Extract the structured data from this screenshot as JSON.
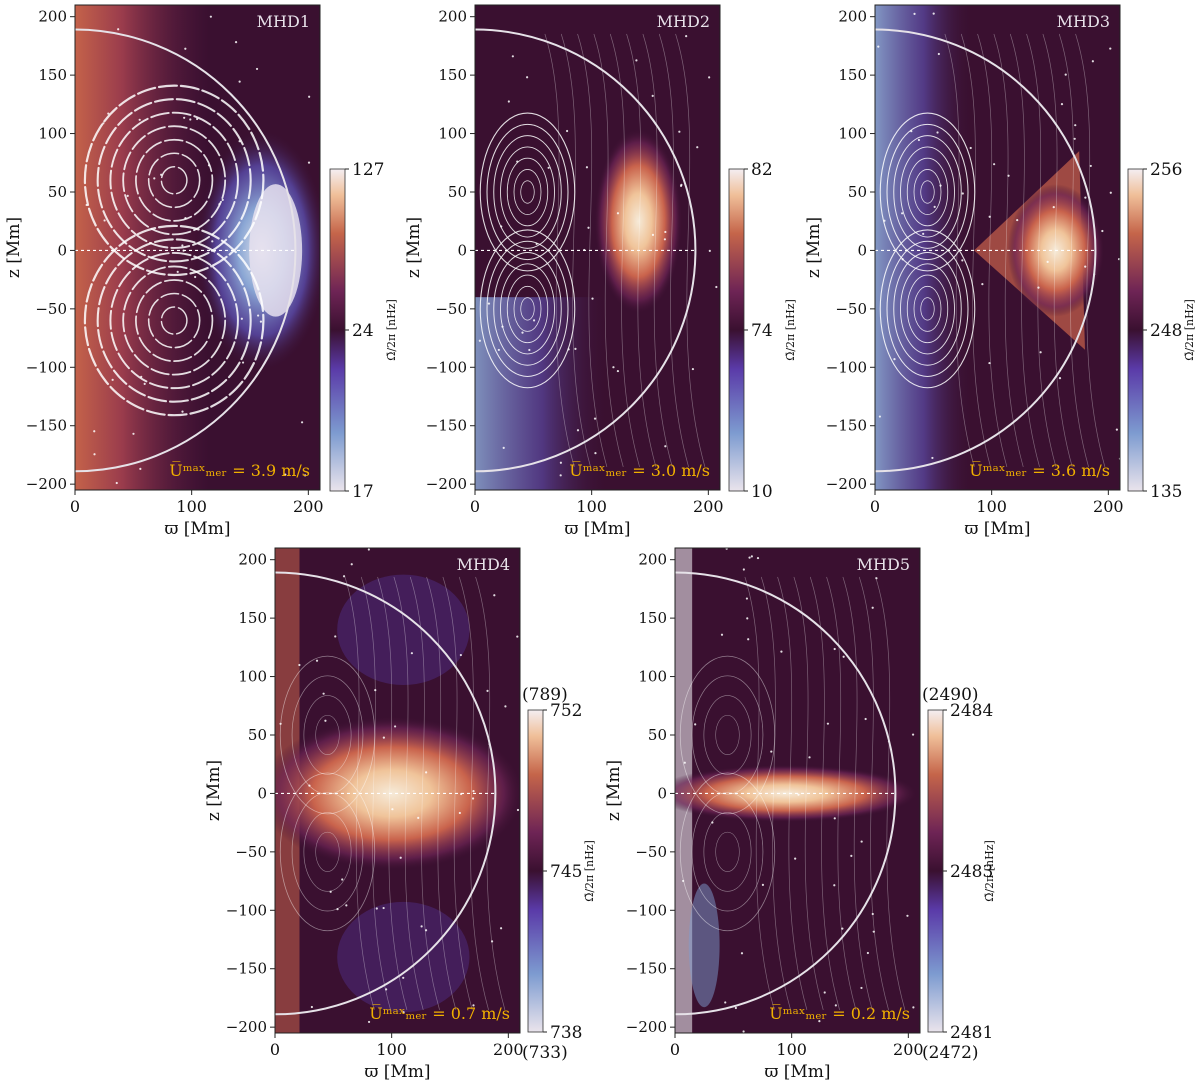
{
  "colors": {
    "background_dark": "#3a1030",
    "mid_purple": "#5a2a70",
    "purple": "#6b3aa0",
    "blue": "#5e7fc0",
    "light": "#e8e2ea",
    "orange": "#d88a50",
    "peach": "#f0c6a0",
    "annotation": "#f0b000",
    "streamline": "#ffffff"
  },
  "colormap": "twilight_shifted",
  "axis_labels": {
    "x": "ϖ [Mm]",
    "y": "z [Mm]",
    "cbar": "Ω̄/2π [nHz]"
  },
  "chart_data": [
    {
      "type": "heatmap",
      "title": "MHD1",
      "xlim": [
        0,
        210
      ],
      "ylim": [
        -205,
        210
      ],
      "x_ticks": [
        "0",
        "100",
        "200"
      ],
      "y_ticks": [
        "200",
        "150",
        "100",
        "50",
        "0",
        "−50",
        "−100",
        "−150",
        "−200"
      ],
      "colorbar": {
        "min": "17",
        "mid": "24",
        "max": "127",
        "min_outer": "",
        "max_outer": ""
      },
      "annotation": "U̅ᵐᵃˣₘₑᵣ = 3.9 m/s",
      "u_max": 3.9,
      "radius": 189,
      "streamline_strength": "strong",
      "hotspot": {
        "x": 170,
        "z": 0,
        "shape": "crescent"
      }
    },
    {
      "type": "heatmap",
      "title": "MHD2",
      "xlim": [
        0,
        210
      ],
      "ylim": [
        -205,
        210
      ],
      "x_ticks": [
        "0",
        "100",
        "200"
      ],
      "y_ticks": [
        "200",
        "150",
        "100",
        "50",
        "0",
        "−50",
        "−100",
        "−150",
        "−200"
      ],
      "colorbar": {
        "min": "10",
        "mid": "74",
        "max": "82",
        "min_outer": "",
        "max_outer": ""
      },
      "annotation": "U̅ᵐᵃˣₘₑᵣ = 3.0 m/s",
      "u_max": 3.0,
      "radius": 189,
      "streamline_strength": "medium",
      "hotspot": {
        "x": 140,
        "z": 25,
        "shape": "blob"
      }
    },
    {
      "type": "heatmap",
      "title": "MHD3",
      "xlim": [
        0,
        210
      ],
      "ylim": [
        -205,
        210
      ],
      "x_ticks": [
        "0",
        "100",
        "200"
      ],
      "y_ticks": [
        "200",
        "150",
        "100",
        "50",
        "0",
        "−50",
        "−100",
        "−150",
        "−200"
      ],
      "colorbar": {
        "min": "135",
        "mid": "248",
        "max": "256",
        "min_outer": "",
        "max_outer": ""
      },
      "annotation": "U̅ᵐᵃˣₘₑᵣ = 3.6 m/s",
      "u_max": 3.6,
      "radius": 189,
      "streamline_strength": "medium",
      "hotspot": {
        "x": 155,
        "z": 0,
        "shape": "triangle"
      }
    },
    {
      "type": "heatmap",
      "title": "MHD4",
      "xlim": [
        0,
        210
      ],
      "ylim": [
        -205,
        210
      ],
      "x_ticks": [
        "0",
        "100",
        "200"
      ],
      "y_ticks": [
        "200",
        "150",
        "100",
        "50",
        "0",
        "−50",
        "−100",
        "−150",
        "−200"
      ],
      "colorbar": {
        "min": "738",
        "mid": "745",
        "max": "752",
        "min_outer": "(733)",
        "max_outer": "(789)"
      },
      "annotation": "U̅ᵐᵃˣₘₑᵣ = 0.7 m/s",
      "u_max": 0.7,
      "radius": 189,
      "streamline_strength": "weak",
      "hotspot": {
        "x": 100,
        "z": 0,
        "shape": "band"
      }
    },
    {
      "type": "heatmap",
      "title": "MHD5",
      "xlim": [
        0,
        210
      ],
      "ylim": [
        -205,
        210
      ],
      "x_ticks": [
        "0",
        "100",
        "200"
      ],
      "y_ticks": [
        "200",
        "150",
        "100",
        "50",
        "0",
        "−50",
        "−100",
        "−150",
        "−200"
      ],
      "colorbar": {
        "min": "2481",
        "mid": "2483",
        "max": "2484",
        "min_outer": "(2472)",
        "max_outer": "(2490)"
      },
      "annotation": "U̅ᵐᵃˣₘₑᵣ = 0.2 m/s",
      "u_max": 0.2,
      "radius": 189,
      "streamline_strength": "weak",
      "hotspot": {
        "x": 100,
        "z": 0,
        "shape": "thin-band"
      }
    }
  ]
}
